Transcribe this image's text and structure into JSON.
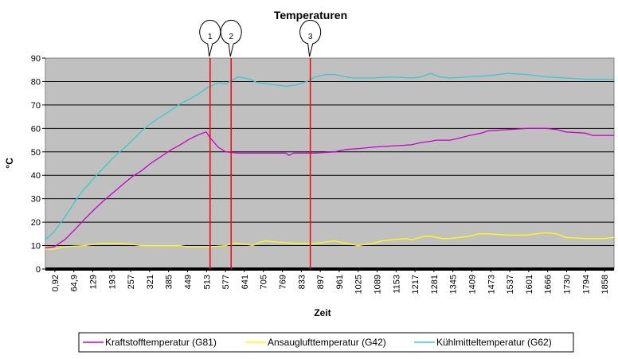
{
  "chart_data": {
    "type": "line",
    "title": "Temperaturen",
    "xlabel": "Zeit",
    "ylabel": "°C",
    "ylim": [
      0,
      90
    ],
    "yticks": [
      "0",
      "10",
      "20",
      "30",
      "40",
      "50",
      "60",
      "70",
      "80",
      "90"
    ],
    "xticks": [
      "0,92",
      "64,9",
      "129",
      "193",
      "257",
      "321",
      "385",
      "449",
      "513",
      "577",
      "641",
      "705",
      "769",
      "833",
      "897",
      "961",
      "1025",
      "1089",
      "1153",
      "1217",
      "1281",
      "1345",
      "1409",
      "1473",
      "1537",
      "1601",
      "1666",
      "1730",
      "1794",
      "1858"
    ],
    "xlim": [
      0.92,
      1890
    ],
    "grid": "horizontal",
    "legend": "bottom",
    "markers": [
      {
        "label": "1",
        "x": 548
      },
      {
        "label": "2",
        "x": 618
      },
      {
        "label": "3",
        "x": 881
      }
    ],
    "series": [
      {
        "name": "Kraftstofftemperatur (G81)",
        "color": "#cc00cc",
        "points": [
          [
            0.92,
            9
          ],
          [
            30,
            9.5
          ],
          [
            64.9,
            12.5
          ],
          [
            100,
            17
          ],
          [
            129,
            21
          ],
          [
            160,
            25
          ],
          [
            193,
            29
          ],
          [
            230,
            33
          ],
          [
            257,
            36
          ],
          [
            290,
            39.5
          ],
          [
            321,
            42
          ],
          [
            350,
            45
          ],
          [
            385,
            48
          ],
          [
            420,
            51
          ],
          [
            449,
            53
          ],
          [
            480,
            55.5
          ],
          [
            513,
            57.5
          ],
          [
            535,
            58.5
          ],
          [
            548,
            56
          ],
          [
            575,
            52
          ],
          [
            600,
            50
          ],
          [
            641,
            49.5
          ],
          [
            705,
            49.5
          ],
          [
            769,
            49.5
          ],
          [
            800,
            49.5
          ],
          [
            810,
            48.5
          ],
          [
            825,
            49.5
          ],
          [
            897,
            49.5
          ],
          [
            961,
            50
          ],
          [
            1000,
            51
          ],
          [
            1050,
            51.5
          ],
          [
            1089,
            52
          ],
          [
            1153,
            52.5
          ],
          [
            1217,
            53
          ],
          [
            1250,
            54
          ],
          [
            1281,
            54.5
          ],
          [
            1300,
            55
          ],
          [
            1345,
            55
          ],
          [
            1380,
            56
          ],
          [
            1409,
            57
          ],
          [
            1450,
            58
          ],
          [
            1473,
            59
          ],
          [
            1537,
            59.5
          ],
          [
            1601,
            60
          ],
          [
            1666,
            60
          ],
          [
            1700,
            59.5
          ],
          [
            1730,
            58.5
          ],
          [
            1794,
            58
          ],
          [
            1820,
            57
          ],
          [
            1858,
            57
          ],
          [
            1890,
            57
          ]
        ]
      },
      {
        "name": "Ansauglufttemperatur (G42)",
        "color": "#ffff00",
        "points": [
          [
            0.92,
            8.5
          ],
          [
            30,
            8.5
          ],
          [
            64.9,
            9.5
          ],
          [
            129,
            10
          ],
          [
            160,
            10.5
          ],
          [
            193,
            11
          ],
          [
            220,
            11
          ],
          [
            257,
            11
          ],
          [
            290,
            10.5
          ],
          [
            321,
            10
          ],
          [
            385,
            10
          ],
          [
            449,
            10
          ],
          [
            470,
            9.5
          ],
          [
            513,
            9.5
          ],
          [
            548,
            9.5
          ],
          [
            600,
            10
          ],
          [
            620,
            11
          ],
          [
            641,
            11
          ],
          [
            670,
            10.5
          ],
          [
            690,
            10
          ],
          [
            705,
            11
          ],
          [
            730,
            12
          ],
          [
            769,
            11.5
          ],
          [
            833,
            11
          ],
          [
            897,
            11
          ],
          [
            930,
            11.5
          ],
          [
            961,
            12
          ],
          [
            1000,
            11
          ],
          [
            1040,
            10
          ],
          [
            1089,
            11
          ],
          [
            1120,
            12
          ],
          [
            1153,
            12.5
          ],
          [
            1200,
            13
          ],
          [
            1217,
            12.5
          ],
          [
            1260,
            14
          ],
          [
            1281,
            14
          ],
          [
            1320,
            13
          ],
          [
            1345,
            13
          ],
          [
            1409,
            14
          ],
          [
            1440,
            15
          ],
          [
            1473,
            15
          ],
          [
            1537,
            14.5
          ],
          [
            1601,
            14.5
          ],
          [
            1630,
            15
          ],
          [
            1666,
            15.5
          ],
          [
            1700,
            15
          ],
          [
            1730,
            13.5
          ],
          [
            1794,
            13
          ],
          [
            1858,
            13
          ],
          [
            1890,
            13.5
          ]
        ]
      },
      {
        "name": "Kühlmitteltemperatur (G62)",
        "color": "#33cccc",
        "points": [
          [
            0.92,
            12.5
          ],
          [
            30,
            16
          ],
          [
            64.9,
            22
          ],
          [
            100,
            29
          ],
          [
            129,
            34
          ],
          [
            160,
            38.5
          ],
          [
            193,
            43
          ],
          [
            230,
            48
          ],
          [
            257,
            51
          ],
          [
            290,
            55
          ],
          [
            321,
            59
          ],
          [
            350,
            62
          ],
          [
            385,
            65
          ],
          [
            420,
            68
          ],
          [
            449,
            70.5
          ],
          [
            480,
            72.5
          ],
          [
            513,
            75
          ],
          [
            540,
            77.5
          ],
          [
            577,
            79.5
          ],
          [
            600,
            79
          ],
          [
            641,
            82
          ],
          [
            680,
            81
          ],
          [
            705,
            79.5
          ],
          [
            740,
            79
          ],
          [
            769,
            78.5
          ],
          [
            800,
            78
          ],
          [
            833,
            78.5
          ],
          [
            870,
            80
          ],
          [
            897,
            82
          ],
          [
            930,
            83
          ],
          [
            961,
            83
          ],
          [
            1000,
            82
          ],
          [
            1025,
            81.5
          ],
          [
            1089,
            81.5
          ],
          [
            1153,
            82
          ],
          [
            1217,
            81.5
          ],
          [
            1250,
            82
          ],
          [
            1281,
            83.5
          ],
          [
            1310,
            82
          ],
          [
            1345,
            81.5
          ],
          [
            1409,
            82
          ],
          [
            1473,
            82.5
          ],
          [
            1537,
            83.5
          ],
          [
            1601,
            83
          ],
          [
            1666,
            82
          ],
          [
            1730,
            81.5
          ],
          [
            1794,
            81
          ],
          [
            1858,
            81
          ],
          [
            1890,
            81
          ]
        ]
      }
    ]
  }
}
